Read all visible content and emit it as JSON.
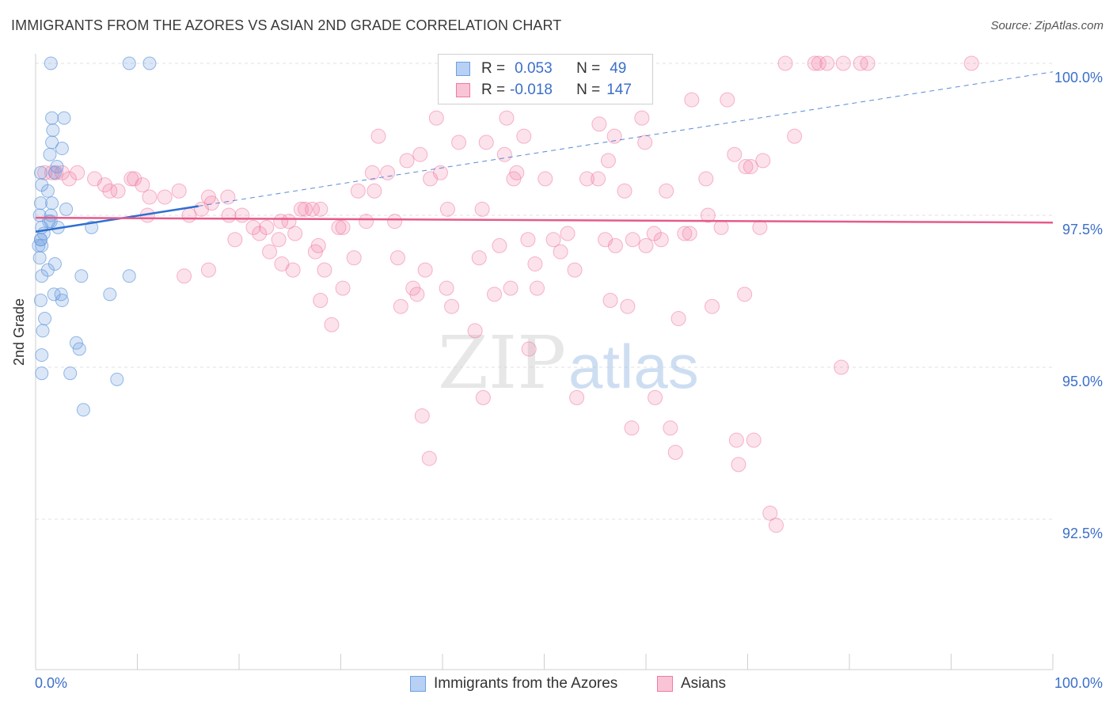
{
  "title": "IMMIGRANTS FROM THE AZORES VS ASIAN 2ND GRADE CORRELATION CHART",
  "source": "Source: ZipAtlas.com",
  "watermark": {
    "zip": "ZIP",
    "atlas": "atlas"
  },
  "legend": {
    "rows": [
      {
        "r_label": "R =",
        "r_value": "0.053",
        "n_label": "N =",
        "n_value": "49"
      },
      {
        "r_label": "R =",
        "r_value": "-0.018",
        "n_label": "N =",
        "n_value": "147"
      }
    ]
  },
  "chart_data": {
    "type": "scatter",
    "xlabel": "",
    "ylabel": "2nd Grade",
    "xlim": [
      0,
      100
    ],
    "ylim": [
      90.0,
      100.4
    ],
    "x_tick_labels": [
      "0.0%",
      "100.0%"
    ],
    "y_ticks": [
      {
        "value": 100.0,
        "label": "100.0%"
      },
      {
        "value": 97.5,
        "label": "97.5%"
      },
      {
        "value": 95.0,
        "label": "95.0%"
      },
      {
        "value": 92.5,
        "label": "92.5%"
      }
    ],
    "grid": true,
    "colors": {
      "blue": "#6fa0e0",
      "pink": "#f07ba3",
      "blue_line": "#2e6ed0",
      "pink_line": "#e65a8c"
    },
    "series": [
      {
        "name": "Immigrants from the Azores",
        "points": [
          [
            1.5,
            100.0
          ],
          [
            9.2,
            100.0
          ],
          [
            11.2,
            100.0
          ],
          [
            1.6,
            99.1
          ],
          [
            2.8,
            99.1
          ],
          [
            1.7,
            98.9
          ],
          [
            1.6,
            98.7
          ],
          [
            2.6,
            98.6
          ],
          [
            1.4,
            98.5
          ],
          [
            0.5,
            98.2
          ],
          [
            0.6,
            98.0
          ],
          [
            1.2,
            97.9
          ],
          [
            0.5,
            97.7
          ],
          [
            1.6,
            97.7
          ],
          [
            0.4,
            97.5
          ],
          [
            1.5,
            97.5
          ],
          [
            1.3,
            97.4
          ],
          [
            0.6,
            97.3
          ],
          [
            2.2,
            97.3
          ],
          [
            5.5,
            97.3
          ],
          [
            0.5,
            97.1
          ],
          [
            0.5,
            97.1
          ],
          [
            0.3,
            97.0
          ],
          [
            0.6,
            97.0
          ],
          [
            0.4,
            96.8
          ],
          [
            1.9,
            96.7
          ],
          [
            1.2,
            96.6
          ],
          [
            4.5,
            96.5
          ],
          [
            9.2,
            96.5
          ],
          [
            0.6,
            96.5
          ],
          [
            1.8,
            96.2
          ],
          [
            2.5,
            96.2
          ],
          [
            7.3,
            96.2
          ],
          [
            2.6,
            96.1
          ],
          [
            0.5,
            96.1
          ],
          [
            0.9,
            95.8
          ],
          [
            0.7,
            95.6
          ],
          [
            4.0,
            95.4
          ],
          [
            4.3,
            95.3
          ],
          [
            0.6,
            95.2
          ],
          [
            0.6,
            94.9
          ],
          [
            3.4,
            94.9
          ],
          [
            8.0,
            94.8
          ],
          [
            4.7,
            94.3
          ],
          [
            1.9,
            98.2
          ],
          [
            2.1,
            98.3
          ],
          [
            1.5,
            97.4
          ],
          [
            0.8,
            97.2
          ],
          [
            3.0,
            97.6
          ]
        ]
      },
      {
        "name": "Asians",
        "points": [
          [
            0.9,
            98.2
          ],
          [
            1.6,
            98.2
          ],
          [
            2.0,
            98.2
          ],
          [
            2.6,
            98.2
          ],
          [
            3.3,
            98.1
          ],
          [
            4.1,
            98.2
          ],
          [
            5.8,
            98.1
          ],
          [
            6.8,
            98.0
          ],
          [
            7.3,
            97.9
          ],
          [
            8.1,
            97.9
          ],
          [
            9.4,
            98.1
          ],
          [
            9.7,
            98.1
          ],
          [
            10.5,
            98.0
          ],
          [
            11.2,
            97.8
          ],
          [
            12.7,
            97.8
          ],
          [
            14.1,
            97.9
          ],
          [
            15.1,
            97.5
          ],
          [
            16.3,
            97.6
          ],
          [
            17.0,
            97.8
          ],
          [
            17.3,
            97.7
          ],
          [
            18.9,
            97.8
          ],
          [
            19.0,
            97.5
          ],
          [
            19.6,
            97.1
          ],
          [
            20.3,
            97.5
          ],
          [
            21.4,
            97.3
          ],
          [
            22.0,
            97.2
          ],
          [
            22.7,
            97.3
          ],
          [
            23.0,
            96.9
          ],
          [
            24.1,
            97.4
          ],
          [
            23.9,
            97.1
          ],
          [
            24.9,
            97.4
          ],
          [
            25.5,
            97.2
          ],
          [
            26.5,
            97.6
          ],
          [
            27.2,
            97.6
          ],
          [
            28.0,
            97.6
          ],
          [
            26.1,
            97.6
          ],
          [
            27.5,
            96.9
          ],
          [
            27.8,
            97.0
          ],
          [
            28.4,
            96.6
          ],
          [
            28.0,
            96.1
          ],
          [
            29.1,
            95.7
          ],
          [
            29.8,
            97.3
          ],
          [
            30.2,
            97.3
          ],
          [
            31.3,
            96.8
          ],
          [
            31.7,
            97.9
          ],
          [
            32.5,
            97.4
          ],
          [
            33.1,
            98.2
          ],
          [
            33.3,
            97.9
          ],
          [
            33.7,
            98.8
          ],
          [
            34.6,
            98.2
          ],
          [
            35.3,
            97.4
          ],
          [
            35.6,
            96.8
          ],
          [
            35.9,
            96.0
          ],
          [
            36.5,
            98.4
          ],
          [
            37.1,
            96.3
          ],
          [
            37.5,
            96.2
          ],
          [
            37.8,
            98.5
          ],
          [
            38.3,
            96.6
          ],
          [
            38.8,
            98.1
          ],
          [
            39.4,
            99.1
          ],
          [
            39.8,
            98.2
          ],
          [
            40.5,
            97.6
          ],
          [
            41.6,
            98.7
          ],
          [
            43.2,
            95.6
          ],
          [
            43.6,
            96.8
          ],
          [
            43.9,
            97.6
          ],
          [
            44.3,
            98.7
          ],
          [
            45.1,
            96.2
          ],
          [
            45.6,
            97.0
          ],
          [
            46.1,
            98.5
          ],
          [
            46.3,
            99.1
          ],
          [
            47.0,
            98.1
          ],
          [
            47.3,
            98.2
          ],
          [
            48.0,
            98.8
          ],
          [
            48.4,
            97.1
          ],
          [
            49.1,
            96.7
          ],
          [
            49.3,
            96.3
          ],
          [
            50.1,
            98.1
          ],
          [
            50.9,
            97.1
          ],
          [
            51.6,
            96.9
          ],
          [
            52.3,
            97.2
          ],
          [
            53.0,
            96.6
          ],
          [
            54.2,
            98.1
          ],
          [
            55.4,
            99.0
          ],
          [
            55.3,
            98.1
          ],
          [
            56.0,
            97.1
          ],
          [
            56.3,
            98.4
          ],
          [
            56.9,
            98.8
          ],
          [
            57.0,
            97.0
          ],
          [
            57.9,
            97.9
          ],
          [
            58.2,
            96.0
          ],
          [
            58.7,
            97.1
          ],
          [
            59.6,
            99.1
          ],
          [
            59.9,
            98.7
          ],
          [
            60.0,
            97.0
          ],
          [
            60.8,
            97.2
          ],
          [
            60.9,
            94.5
          ],
          [
            61.5,
            97.1
          ],
          [
            62.0,
            97.9
          ],
          [
            62.4,
            94.0
          ],
          [
            62.9,
            93.6
          ],
          [
            63.8,
            97.2
          ],
          [
            64.3,
            97.2
          ],
          [
            64.5,
            99.4
          ],
          [
            65.9,
            98.1
          ],
          [
            66.1,
            97.5
          ],
          [
            67.4,
            97.3
          ],
          [
            68.0,
            99.4
          ],
          [
            68.7,
            98.5
          ],
          [
            68.9,
            93.8
          ],
          [
            69.1,
            93.4
          ],
          [
            69.8,
            98.3
          ],
          [
            70.3,
            98.3
          ],
          [
            70.6,
            93.8
          ],
          [
            71.2,
            97.3
          ],
          [
            71.5,
            98.4
          ],
          [
            72.2,
            92.6
          ],
          [
            72.8,
            92.4
          ],
          [
            73.7,
            100.0
          ],
          [
            74.6,
            98.8
          ],
          [
            76.6,
            100.0
          ],
          [
            77.0,
            100.0
          ],
          [
            77.8,
            100.0
          ],
          [
            79.4,
            100.0
          ],
          [
            81.1,
            100.0
          ],
          [
            81.8,
            100.0
          ],
          [
            92.0,
            100.0
          ],
          [
            24.2,
            96.7
          ],
          [
            25.3,
            96.6
          ],
          [
            38.0,
            94.2
          ],
          [
            38.7,
            93.5
          ],
          [
            44.0,
            94.5
          ],
          [
            48.5,
            95.3
          ],
          [
            53.2,
            94.5
          ],
          [
            58.6,
            94.0
          ],
          [
            30.2,
            96.3
          ],
          [
            17.0,
            96.6
          ],
          [
            14.6,
            96.5
          ],
          [
            11.0,
            97.5
          ],
          [
            40.4,
            96.3
          ],
          [
            40.9,
            96.0
          ],
          [
            46.7,
            96.3
          ],
          [
            56.5,
            96.1
          ],
          [
            63.2,
            95.8
          ],
          [
            66.5,
            96.0
          ],
          [
            69.7,
            96.2
          ],
          [
            79.2,
            95.0
          ]
        ]
      }
    ],
    "trend_lines": [
      {
        "series": "Immigrants from the Azores",
        "x": [
          0,
          16
        ],
        "y": [
          97.23,
          97.65
        ],
        "extended_x": [
          16,
          100
        ],
        "extended_y": [
          97.65,
          99.86
        ]
      },
      {
        "series": "Asians",
        "x": [
          0,
          100
        ],
        "y": [
          97.46,
          97.38
        ]
      }
    ]
  }
}
